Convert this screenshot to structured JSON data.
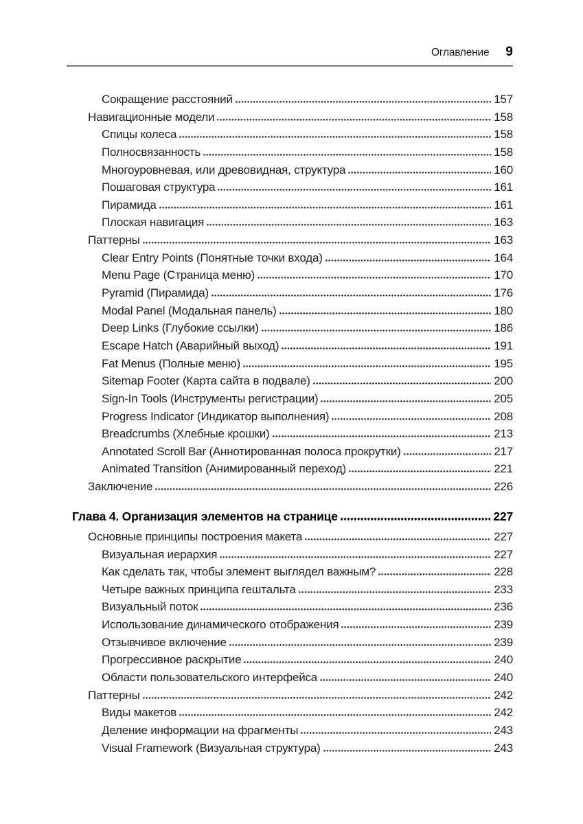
{
  "header": {
    "running_title": "Оглавление",
    "page_number": "9"
  },
  "colors": {
    "text": "#212121",
    "chapter_text": "#000000",
    "rule": "#7a7a7a",
    "leader_dots": "#333333",
    "background": "#ffffff"
  },
  "toc": {
    "entries": [
      {
        "level": 2,
        "title": "Сокращение расстояний",
        "page": "157"
      },
      {
        "level": 1,
        "title": "Навигационные модели",
        "page": "158"
      },
      {
        "level": 2,
        "title": "Спицы колеса",
        "page": "158"
      },
      {
        "level": 2,
        "title": "Полносвязанность",
        "page": "158"
      },
      {
        "level": 2,
        "title": "Многоуровневая, или древовидная, структура",
        "page": "160"
      },
      {
        "level": 2,
        "title": "Пошаговая структура",
        "page": "161"
      },
      {
        "level": 2,
        "title": "Пирамида",
        "page": "161"
      },
      {
        "level": 2,
        "title": "Плоская навигация",
        "page": "163"
      },
      {
        "level": 1,
        "title": "Паттерны",
        "page": "163"
      },
      {
        "level": 2,
        "title": "Clear Entry Points (Понятные точки входа)",
        "page": "164"
      },
      {
        "level": 2,
        "title": "Menu Page (Страница меню)",
        "page": "170"
      },
      {
        "level": 2,
        "title": "Pyramid (Пирамида)",
        "page": "176"
      },
      {
        "level": 2,
        "title": "Modal Panel (Модальная панель)",
        "page": "180"
      },
      {
        "level": 2,
        "title": "Deep Links (Глубокие ссылки)",
        "page": "186"
      },
      {
        "level": 2,
        "title": "Escape Hatch (Аварийный выход)",
        "page": "191"
      },
      {
        "level": 2,
        "title": "Fat Menus (Полные меню)",
        "page": "195"
      },
      {
        "level": 2,
        "title": "Sitemap Footer (Карта сайта в подвале)",
        "page": "200"
      },
      {
        "level": 2,
        "title": "Sign-In Tools (Инструменты регистрации)",
        "page": "205"
      },
      {
        "level": 2,
        "title": "Progress Indicator (Индикатор выполнения)",
        "page": "208"
      },
      {
        "level": 2,
        "title": "Breadcrumbs (Хлебные крошки)",
        "page": "213"
      },
      {
        "level": 2,
        "title": "Annotated Scroll Bar (Аннотированная полоса прокрутки)",
        "page": "217"
      },
      {
        "level": 2,
        "title": "Animated Transition (Анимированный переход)",
        "page": "221"
      },
      {
        "level": 1,
        "title": "Заключение",
        "page": "226"
      },
      {
        "chapter": true,
        "level": 0,
        "title": "Глава 4. Организация элементов на странице",
        "page": "227"
      },
      {
        "level": 1,
        "title": "Основные принципы построения макета",
        "page": "227"
      },
      {
        "level": 2,
        "title": "Визуальная иерархия",
        "page": "227"
      },
      {
        "level": 2,
        "title": "Как сделать так, чтобы элемент выглядел важным?",
        "page": "228"
      },
      {
        "level": 2,
        "title": "Четыре важных принципа гештальта",
        "page": "233"
      },
      {
        "level": 2,
        "title": "Визуальный поток",
        "page": "236"
      },
      {
        "level": 2,
        "title": "Использование динамического отображения",
        "page": "239"
      },
      {
        "level": 2,
        "title": "Отзывчивое включение",
        "page": "239"
      },
      {
        "level": 2,
        "title": "Прогрессивное раскрытие",
        "page": "240"
      },
      {
        "level": 2,
        "title": "Области пользовательского интерфейса",
        "page": "240"
      },
      {
        "level": 1,
        "title": "Паттерны",
        "page": "242"
      },
      {
        "level": 2,
        "title": "Виды макетов",
        "page": "242"
      },
      {
        "level": 2,
        "title": "Деление информации на фрагменты",
        "page": "243"
      },
      {
        "level": 2,
        "title": "Visual Framework (Визуальная структура)",
        "page": "243"
      }
    ]
  }
}
